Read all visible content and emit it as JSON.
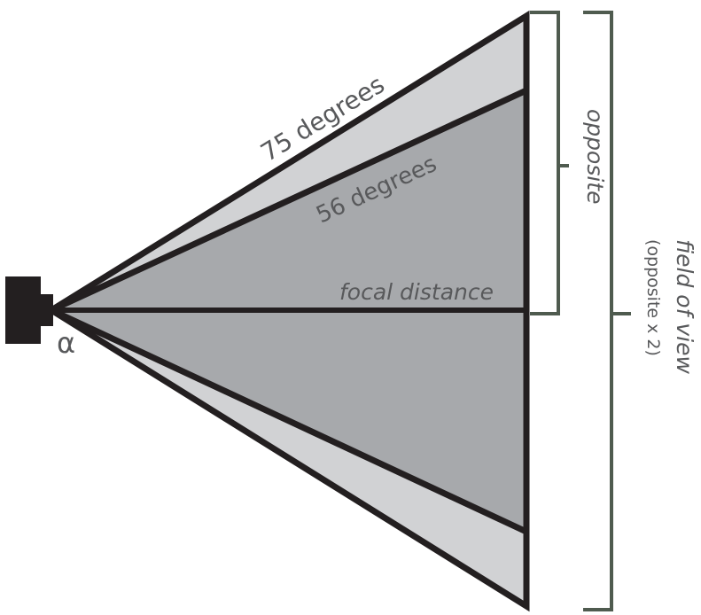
{
  "labels": {
    "wide_angle": "75 degrees",
    "narrow_angle": "56 degrees",
    "focal_distance": "focal distance",
    "opposite": "opposite",
    "field_of_view": "field of view",
    "field_of_view_note": "(opposite x 2)",
    "angle_symbol": "α"
  },
  "colors": {
    "outline": "#231f20",
    "wide_fill": "#d1d2d4",
    "narrow_fill": "#a7a9ac",
    "text": "#58595b",
    "bracket": "#4f5b4f"
  }
}
